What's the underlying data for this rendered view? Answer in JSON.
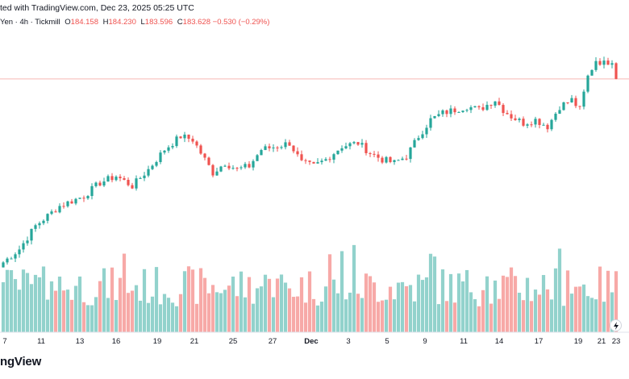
{
  "header": {
    "published": "ted with TradingView.com, Dec 23, 2025 05:25 UTC",
    "symbol": "Yen · 4h · Tickmill",
    "ohlc": [
      {
        "label": "O",
        "value": "184.158"
      },
      {
        "label": "H",
        "value": "184.230"
      },
      {
        "label": "L",
        "value": "183.596"
      },
      {
        "label": "C",
        "value": "183.628"
      }
    ],
    "change": "−0.530 (−0.29%)"
  },
  "colors": {
    "up": "#26a69a",
    "down": "#ef5350",
    "up_volume": "#92d2cc",
    "down_volume": "#f7a9a7",
    "price_line": "#f6b6b4"
  },
  "footer": {
    "logo_text": "ngView"
  },
  "icons": {
    "bolt": "lightning-bolt-icon"
  },
  "chart_data": {
    "type": "candlestick",
    "x_tick_labels": [
      "7",
      "11",
      "13",
      "16",
      "19",
      "21",
      "25",
      "27",
      "Dec",
      "3",
      "5",
      "9",
      "11",
      "14",
      "17",
      "19",
      "21",
      "23"
    ],
    "anchors": [
      [
        0,
        178.0
      ],
      [
        4,
        178.4
      ],
      [
        8,
        179.1
      ],
      [
        14,
        179.7
      ],
      [
        20,
        180.0
      ],
      [
        24,
        180.4
      ],
      [
        28,
        180.6
      ],
      [
        32,
        180.3
      ],
      [
        36,
        180.8
      ],
      [
        40,
        181.4
      ],
      [
        44,
        181.8
      ],
      [
        47,
        181.7
      ],
      [
        49,
        181.3
      ],
      [
        52,
        180.7
      ],
      [
        55,
        181.0
      ],
      [
        58,
        180.8
      ],
      [
        61,
        180.9
      ],
      [
        64,
        181.4
      ],
      [
        68,
        181.5
      ],
      [
        71,
        181.6
      ],
      [
        74,
        181.0
      ],
      [
        77,
        180.9
      ],
      [
        80,
        181.1
      ],
      [
        84,
        181.5
      ],
      [
        88,
        181.6
      ],
      [
        91,
        181.3
      ],
      [
        94,
        181.1
      ],
      [
        97,
        181.0
      ],
      [
        100,
        181.2
      ],
      [
        103,
        181.8
      ],
      [
        106,
        182.3
      ],
      [
        109,
        182.5
      ],
      [
        112,
        182.6
      ],
      [
        115,
        182.7
      ],
      [
        118,
        182.6
      ],
      [
        122,
        182.9
      ],
      [
        124,
        182.6
      ],
      [
        126,
        182.4
      ],
      [
        129,
        182.2
      ],
      [
        132,
        182.3
      ],
      [
        135,
        182.1
      ],
      [
        138,
        182.7
      ],
      [
        141,
        182.9
      ],
      [
        143,
        182.6
      ],
      [
        145,
        183.6
      ],
      [
        147,
        184.1
      ],
      [
        149,
        184.0
      ],
      [
        151,
        184.1
      ],
      [
        152,
        183.6
      ]
    ],
    "volume_seed": 7
  }
}
